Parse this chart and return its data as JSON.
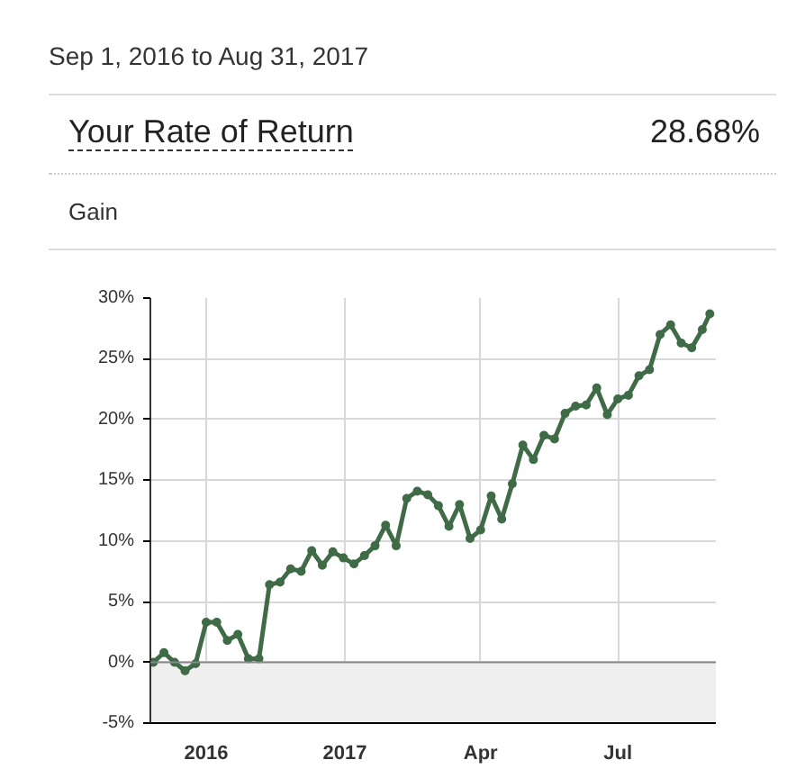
{
  "chart_data": {
    "type": "line",
    "title": "Sep 1, 2016 to Aug 31, 2017",
    "annotations": [
      "Your Rate of Return",
      "28.68%",
      "Gain"
    ],
    "x": [
      "2016-08-27",
      "2016-09-03",
      "2016-09-10",
      "2016-09-17",
      "2016-09-24",
      "2016-10-01",
      "2016-10-08",
      "2016-10-15",
      "2016-10-22",
      "2016-10-29",
      "2016-11-05",
      "2016-11-12",
      "2016-11-19",
      "2016-11-26",
      "2016-12-03",
      "2016-12-10",
      "2016-12-17",
      "2016-12-24",
      "2016-12-31",
      "2017-01-07",
      "2017-01-14",
      "2017-01-21",
      "2017-01-28",
      "2017-02-04",
      "2017-02-11",
      "2017-02-18",
      "2017-02-25",
      "2017-03-04",
      "2017-03-11",
      "2017-03-18",
      "2017-03-25",
      "2017-04-01",
      "2017-04-08",
      "2017-04-15",
      "2017-04-22",
      "2017-04-29",
      "2017-05-06",
      "2017-05-13",
      "2017-05-20",
      "2017-05-27",
      "2017-06-03",
      "2017-06-10",
      "2017-06-17",
      "2017-06-24",
      "2017-07-01",
      "2017-07-08",
      "2017-07-15",
      "2017-07-22",
      "2017-07-29",
      "2017-08-05",
      "2017-08-12",
      "2017-08-19",
      "2017-08-26",
      "2017-08-31"
    ],
    "series": [
      {
        "color": "#3f6b46",
        "values": [
          0.0,
          0.8,
          0.0,
          -0.7,
          -0.1,
          3.3,
          3.3,
          1.8,
          2.3,
          0.3,
          0.3,
          6.4,
          6.6,
          7.7,
          7.5,
          9.2,
          8.0,
          9.1,
          8.6,
          8.1,
          8.8,
          9.6,
          11.3,
          9.6,
          13.5,
          14.1,
          13.8,
          12.9,
          11.2,
          13.0,
          10.2,
          10.9,
          13.7,
          11.8,
          14.7,
          17.9,
          16.7,
          18.7,
          18.4,
          20.5,
          21.1,
          21.2,
          22.6,
          20.4,
          21.7,
          22.0,
          23.6,
          24.1,
          27.0,
          27.8,
          26.3,
          25.9,
          27.4,
          28.7
        ]
      }
    ],
    "xlim": [
      "2016-08-25",
      "2017-09-04"
    ],
    "xticks": [
      {
        "value": "2016-10-01",
        "label": "2016"
      },
      {
        "value": "2017-01-01",
        "label": "2017"
      },
      {
        "value": "2017-04-01",
        "label": "Apr"
      },
      {
        "value": "2017-07-01",
        "label": "Jul"
      }
    ],
    "ylim": [
      -5,
      30
    ],
    "yticks": [
      {
        "value": -5,
        "label": "-5%"
      },
      {
        "value": 0,
        "label": "0%"
      },
      {
        "value": 5,
        "label": "5%"
      },
      {
        "value": 10,
        "label": "10%"
      },
      {
        "value": 15,
        "label": "15%"
      },
      {
        "value": 20,
        "label": "20%"
      },
      {
        "value": 25,
        "label": "25%"
      },
      {
        "value": 30,
        "label": "30%"
      }
    ],
    "bands": [
      {
        "axis": "y",
        "from": -5,
        "to": 0,
        "color": "#efefef"
      }
    ],
    "ref_lines": [
      {
        "axis": "y",
        "value": 0,
        "color": "#888888"
      }
    ],
    "grid": true,
    "marker": "circle",
    "line_style": "solid"
  }
}
